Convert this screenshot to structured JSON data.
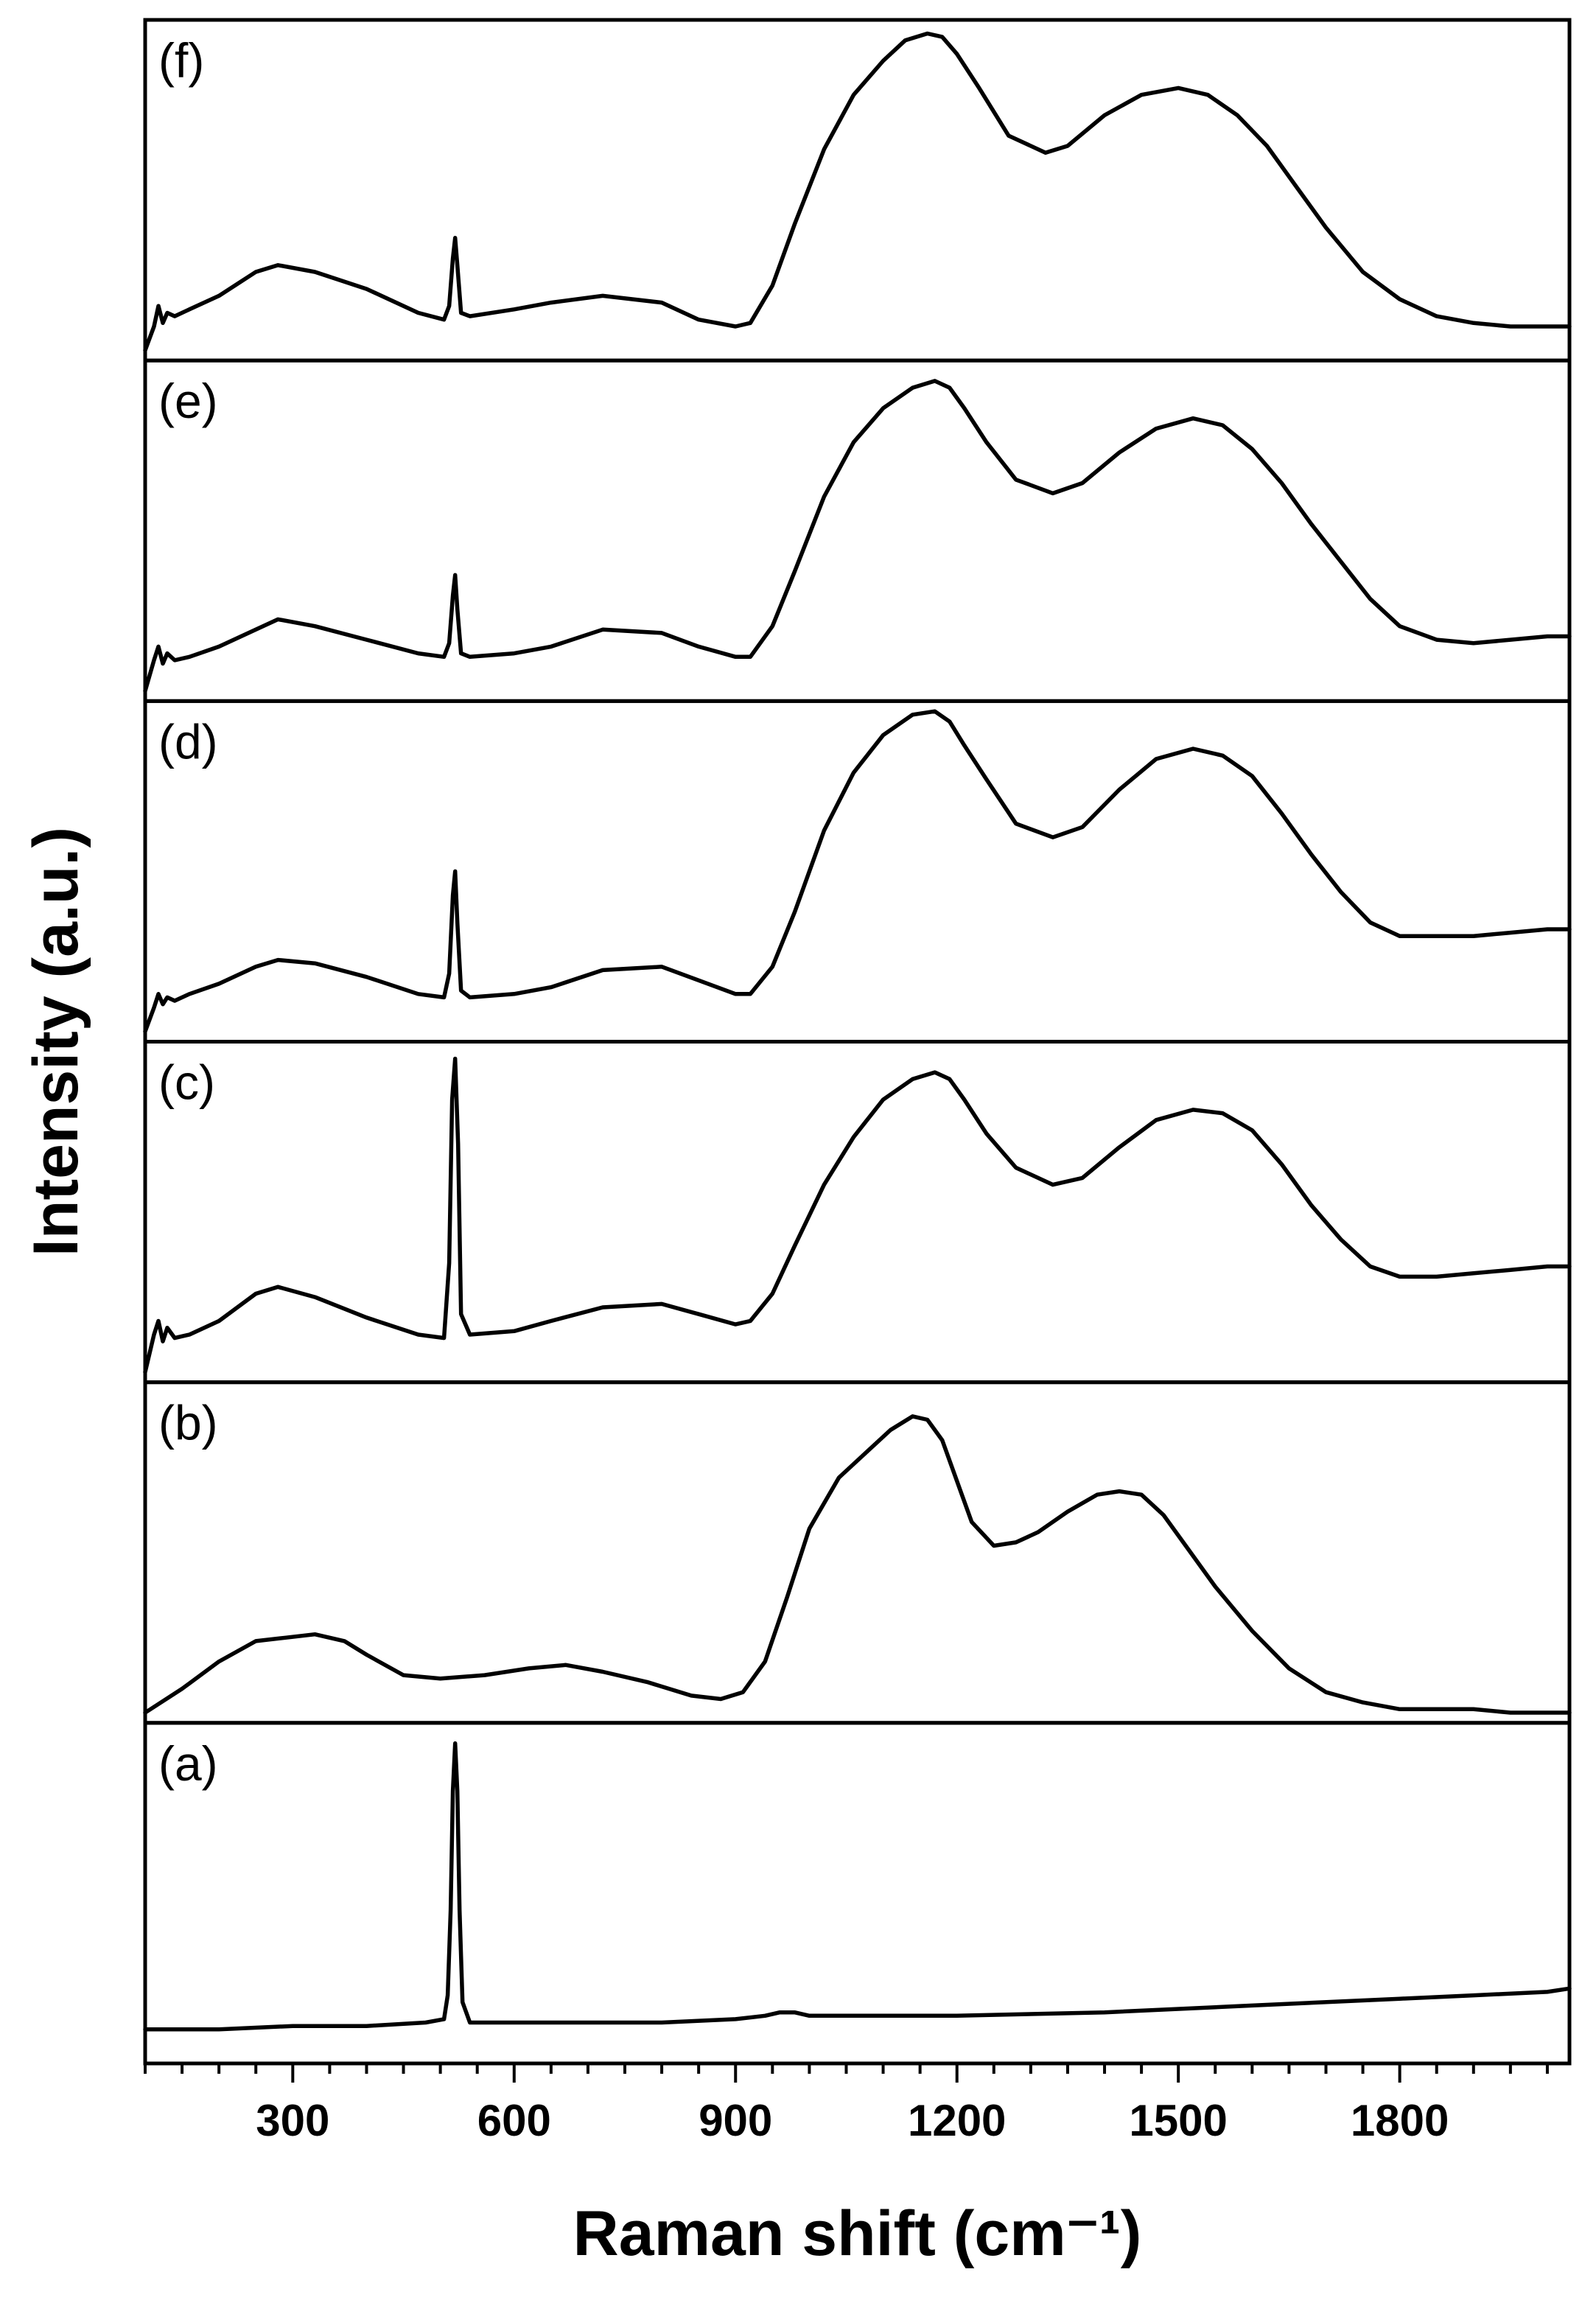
{
  "chart_data": {
    "type": "line",
    "layout": "vertically stacked panels sharing one x-axis",
    "xlabel": "Raman shift (cm⁻¹)",
    "ylabel": "Intensity (a.u.)",
    "xlim": [
      100,
      2030
    ],
    "xticks": [
      300,
      600,
      900,
      1200,
      1500,
      1800
    ],
    "x_minor_tick_step": 50,
    "y_ticks_shown": false,
    "grid": false,
    "panels": [
      {
        "name": "(f)",
        "ylim": [
          0,
          1
        ],
        "x": [
          100,
          112,
          118,
          124,
          130,
          140,
          160,
          200,
          250,
          280,
          330,
          400,
          470,
          505,
          512,
          517,
          520,
          523,
          528,
          540,
          600,
          650,
          720,
          800,
          850,
          900,
          920,
          950,
          980,
          1020,
          1060,
          1100,
          1130,
          1160,
          1180,
          1200,
          1230,
          1270,
          1320,
          1350,
          1400,
          1450,
          1500,
          1540,
          1580,
          1620,
          1660,
          1700,
          1750,
          1800,
          1850,
          1900,
          1950,
          2000,
          2030
        ],
        "y": [
          0.03,
          0.1,
          0.16,
          0.11,
          0.14,
          0.13,
          0.15,
          0.19,
          0.26,
          0.28,
          0.26,
          0.21,
          0.14,
          0.12,
          0.16,
          0.3,
          0.36,
          0.28,
          0.14,
          0.13,
          0.15,
          0.17,
          0.19,
          0.17,
          0.12,
          0.1,
          0.11,
          0.22,
          0.4,
          0.62,
          0.78,
          0.88,
          0.94,
          0.96,
          0.95,
          0.9,
          0.8,
          0.66,
          0.61,
          0.63,
          0.72,
          0.78,
          0.8,
          0.78,
          0.72,
          0.63,
          0.51,
          0.39,
          0.26,
          0.18,
          0.13,
          0.11,
          0.1,
          0.1,
          0.1
        ]
      },
      {
        "name": "(e)",
        "ylim": [
          0,
          1
        ],
        "x": [
          100,
          112,
          118,
          124,
          130,
          140,
          160,
          200,
          250,
          280,
          330,
          400,
          470,
          505,
          512,
          517,
          520,
          523,
          528,
          540,
          600,
          650,
          720,
          800,
          850,
          900,
          920,
          950,
          980,
          1020,
          1060,
          1100,
          1140,
          1170,
          1190,
          1210,
          1240,
          1280,
          1330,
          1370,
          1420,
          1470,
          1520,
          1560,
          1600,
          1640,
          1680,
          1720,
          1760,
          1800,
          1850,
          1900,
          1950,
          2000,
          2030
        ],
        "y": [
          0.03,
          0.12,
          0.16,
          0.11,
          0.14,
          0.12,
          0.13,
          0.16,
          0.21,
          0.24,
          0.22,
          0.18,
          0.14,
          0.13,
          0.17,
          0.31,
          0.37,
          0.27,
          0.14,
          0.13,
          0.14,
          0.16,
          0.21,
          0.2,
          0.16,
          0.13,
          0.13,
          0.22,
          0.38,
          0.6,
          0.76,
          0.86,
          0.92,
          0.94,
          0.92,
          0.86,
          0.76,
          0.65,
          0.61,
          0.64,
          0.73,
          0.8,
          0.83,
          0.81,
          0.74,
          0.64,
          0.52,
          0.41,
          0.3,
          0.22,
          0.18,
          0.17,
          0.18,
          0.19,
          0.19
        ]
      },
      {
        "name": "(d)",
        "ylim": [
          0,
          1
        ],
        "x": [
          100,
          112,
          118,
          124,
          130,
          140,
          160,
          200,
          250,
          280,
          330,
          400,
          470,
          505,
          512,
          517,
          520,
          523,
          528,
          540,
          600,
          650,
          720,
          800,
          850,
          900,
          920,
          950,
          980,
          1020,
          1060,
          1100,
          1140,
          1170,
          1190,
          1210,
          1240,
          1280,
          1330,
          1370,
          1420,
          1470,
          1520,
          1560,
          1600,
          1640,
          1680,
          1720,
          1760,
          1800,
          1850,
          1900,
          1950,
          2000,
          2030
        ],
        "y": [
          0.03,
          0.1,
          0.14,
          0.11,
          0.13,
          0.12,
          0.14,
          0.17,
          0.22,
          0.24,
          0.23,
          0.19,
          0.14,
          0.13,
          0.2,
          0.43,
          0.5,
          0.35,
          0.15,
          0.13,
          0.14,
          0.16,
          0.21,
          0.22,
          0.18,
          0.14,
          0.14,
          0.22,
          0.38,
          0.62,
          0.79,
          0.9,
          0.96,
          0.97,
          0.94,
          0.87,
          0.77,
          0.64,
          0.6,
          0.63,
          0.74,
          0.83,
          0.86,
          0.84,
          0.78,
          0.67,
          0.55,
          0.44,
          0.35,
          0.31,
          0.31,
          0.31,
          0.32,
          0.33,
          0.33
        ]
      },
      {
        "name": "(c)",
        "ylim": [
          0,
          1
        ],
        "x": [
          100,
          112,
          118,
          124,
          130,
          140,
          160,
          200,
          250,
          280,
          330,
          400,
          470,
          505,
          512,
          516,
          520,
          524,
          528,
          540,
          600,
          650,
          720,
          800,
          850,
          900,
          920,
          950,
          980,
          1020,
          1060,
          1100,
          1140,
          1170,
          1190,
          1210,
          1240,
          1280,
          1330,
          1370,
          1420,
          1470,
          1520,
          1560,
          1600,
          1640,
          1680,
          1720,
          1760,
          1800,
          1850,
          1900,
          1950,
          2000,
          2030
        ],
        "y": [
          0.03,
          0.14,
          0.18,
          0.12,
          0.16,
          0.13,
          0.14,
          0.18,
          0.26,
          0.28,
          0.25,
          0.19,
          0.14,
          0.13,
          0.35,
          0.83,
          0.95,
          0.7,
          0.2,
          0.14,
          0.15,
          0.18,
          0.22,
          0.23,
          0.2,
          0.17,
          0.18,
          0.26,
          0.4,
          0.58,
          0.72,
          0.83,
          0.89,
          0.91,
          0.89,
          0.83,
          0.73,
          0.63,
          0.58,
          0.6,
          0.69,
          0.77,
          0.8,
          0.79,
          0.74,
          0.64,
          0.52,
          0.42,
          0.34,
          0.31,
          0.31,
          0.32,
          0.33,
          0.34,
          0.34
        ]
      },
      {
        "name": "(b)",
        "ylim": [
          0,
          1
        ],
        "x": [
          100,
          150,
          200,
          250,
          290,
          330,
          370,
          400,
          450,
          500,
          560,
          620,
          670,
          720,
          780,
          840,
          880,
          910,
          940,
          970,
          1000,
          1040,
          1080,
          1110,
          1140,
          1160,
          1180,
          1200,
          1220,
          1250,
          1280,
          1310,
          1350,
          1390,
          1420,
          1450,
          1480,
          1510,
          1550,
          1600,
          1650,
          1700,
          1750,
          1800,
          1850,
          1900,
          1950,
          2000,
          2030
        ],
        "y": [
          0.03,
          0.1,
          0.18,
          0.24,
          0.25,
          0.26,
          0.24,
          0.2,
          0.14,
          0.13,
          0.14,
          0.16,
          0.17,
          0.15,
          0.12,
          0.08,
          0.07,
          0.09,
          0.18,
          0.37,
          0.57,
          0.72,
          0.8,
          0.86,
          0.9,
          0.89,
          0.83,
          0.71,
          0.59,
          0.52,
          0.53,
          0.56,
          0.62,
          0.67,
          0.68,
          0.67,
          0.61,
          0.52,
          0.4,
          0.27,
          0.16,
          0.09,
          0.06,
          0.04,
          0.04,
          0.04,
          0.03,
          0.03,
          0.03
        ]
      },
      {
        "name": "(a)",
        "ylim": [
          0,
          1
        ],
        "x": [
          100,
          200,
          300,
          400,
          480,
          505,
          510,
          514,
          517,
          520,
          523,
          526,
          530,
          540,
          600,
          700,
          800,
          900,
          940,
          960,
          980,
          1000,
          1100,
          1200,
          1400,
          1600,
          1800,
          1900,
          2000,
          2030
        ],
        "y": [
          0.1,
          0.1,
          0.11,
          0.11,
          0.12,
          0.13,
          0.2,
          0.45,
          0.8,
          0.94,
          0.8,
          0.45,
          0.18,
          0.12,
          0.12,
          0.12,
          0.12,
          0.13,
          0.14,
          0.15,
          0.15,
          0.14,
          0.14,
          0.14,
          0.15,
          0.17,
          0.19,
          0.2,
          0.21,
          0.22
        ]
      }
    ]
  }
}
